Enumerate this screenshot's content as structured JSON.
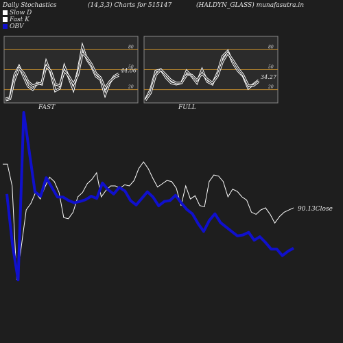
{
  "header": {
    "left": "Daily Stochastics",
    "middle": "(14,3,3) Charts for 515147",
    "right": "(HALDYN_GLASS) munafasutra.in"
  },
  "legend": [
    {
      "label": "Slow  D",
      "color": "#ffffff"
    },
    {
      "label": "Fast K",
      "color": "#ffffff"
    },
    {
      "label": "OBV",
      "color": "#1010cc"
    }
  ],
  "colors": {
    "background": "#1e1e1e",
    "panel": "#2b2b2b",
    "level_line": "#b8862e",
    "stoch_line": "#ffffff",
    "obv": "#1010cc",
    "close": "#ffffff"
  },
  "chart_data": [
    {
      "type": "line",
      "name": "FAST",
      "title": "FAST",
      "ylim": [
        0,
        100
      ],
      "yticks": [
        20,
        50,
        80
      ],
      "levels": [
        20,
        50,
        80
      ],
      "value_label": "44.06",
      "series": [
        {
          "name": "Fast K",
          "values": [
            6,
            8,
            42,
            55,
            40,
            25,
            20,
            30,
            28,
            62,
            45,
            18,
            22,
            55,
            38,
            20,
            48,
            85,
            65,
            55,
            40,
            35,
            12,
            30,
            40,
            44
          ]
        },
        {
          "name": "Slow D",
          "values": [
            4,
            6,
            35,
            52,
            45,
            32,
            26,
            28,
            30,
            55,
            48,
            28,
            26,
            48,
            40,
            28,
            42,
            75,
            68,
            58,
            44,
            38,
            22,
            32,
            38,
            41
          ]
        }
      ]
    },
    {
      "type": "line",
      "name": "FULL",
      "title": "FULL",
      "ylim": [
        0,
        100
      ],
      "yticks": [
        20,
        50,
        80
      ],
      "levels": [
        20,
        50,
        80
      ],
      "value_label": "34.27",
      "series": [
        {
          "name": "Fast K",
          "values": [
            5,
            20,
            48,
            50,
            38,
            30,
            28,
            30,
            48,
            40,
            30,
            50,
            32,
            28,
            45,
            70,
            78,
            60,
            48,
            40,
            22,
            28,
            34
          ]
        },
        {
          "name": "Slow D",
          "values": [
            4,
            15,
            42,
            50,
            42,
            34,
            30,
            30,
            42,
            42,
            34,
            44,
            36,
            30,
            40,
            62,
            75,
            64,
            52,
            42,
            26,
            26,
            32
          ]
        }
      ]
    },
    {
      "type": "line",
      "name": "OBV-Close",
      "close_label": "90.13",
      "close_suffix": "Close",
      "series": [
        {
          "name": "OBV",
          "values": [
            55,
            -60,
            -140,
            240,
            150,
            60,
            50,
            92,
            70,
            48,
            48,
            40,
            35,
            38,
            42,
            50,
            45,
            80,
            65,
            55,
            70,
            62,
            40,
            30,
            45,
            60,
            48,
            28,
            38,
            40,
            52,
            35,
            20,
            10,
            -12,
            -30,
            -5,
            10,
            -10,
            -20,
            -30,
            -40,
            -38,
            -32,
            -50,
            -42,
            -55,
            -70,
            -70,
            -85,
            -75,
            -68
          ]
        },
        {
          "name": "Close",
          "values": [
            134,
            134,
            114,
            28,
            60,
            92,
            98,
            108,
            102,
            113,
            122,
            118,
            108,
            85,
            84,
            90,
            104,
            108,
            116,
            120,
            126,
            104,
            110,
            114,
            114,
            112,
            115,
            114,
            119,
            130,
            136,
            130,
            121,
            113,
            116,
            119,
            118,
            112,
            96,
            114,
            102,
            105,
            96,
            95,
            118,
            124,
            123,
            118,
            104,
            111,
            109,
            104,
            101,
            90,
            88,
            92,
            94,
            88,
            80,
            86,
            90,
            92,
            94
          ]
        }
      ]
    }
  ]
}
